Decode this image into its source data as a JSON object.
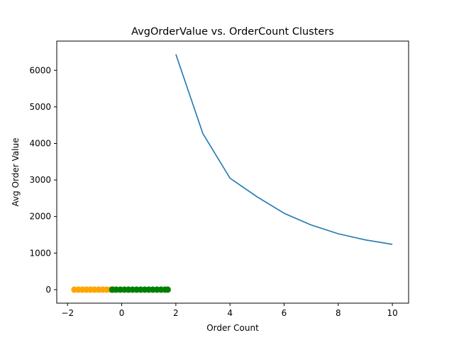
{
  "chart_data": {
    "type": "line",
    "title": "AvgOrderValue vs. OrderCount Clusters",
    "xlabel": "Order Count",
    "ylabel": "Avg Order Value",
    "xlim": [
      -2.4,
      10.6
    ],
    "ylim": [
      -370,
      6800
    ],
    "x_ticks": [
      -2,
      0,
      2,
      4,
      6,
      8,
      10
    ],
    "y_ticks": [
      0,
      1000,
      2000,
      3000,
      4000,
      5000,
      6000
    ],
    "grid": false,
    "series": [
      {
        "kind": "line",
        "color": "#1f77b4",
        "x": [
          2,
          3,
          4,
          5,
          6,
          7,
          8,
          9,
          10
        ],
        "y": [
          6440,
          4270,
          3050,
          2540,
          2090,
          1770,
          1530,
          1360,
          1240
        ]
      },
      {
        "kind": "scatter",
        "color": "#ffa500",
        "x": [
          -1.75,
          -1.6,
          -1.45,
          -1.3,
          -1.15,
          -1.0,
          -0.85,
          -0.7,
          -0.55,
          -0.4,
          -0.3
        ],
        "y": [
          0,
          0,
          0,
          0,
          0,
          0,
          0,
          0,
          0,
          0,
          0
        ]
      },
      {
        "kind": "scatter",
        "color": "#008000",
        "x": [
          -0.35,
          -0.2,
          -0.05,
          0.1,
          0.25,
          0.4,
          0.55,
          0.7,
          0.85,
          1.0,
          1.15,
          1.3,
          1.45,
          1.6,
          1.7
        ],
        "y": [
          0,
          0,
          0,
          0,
          0,
          0,
          0,
          0,
          0,
          0,
          0,
          0,
          0,
          0,
          0
        ]
      }
    ]
  }
}
